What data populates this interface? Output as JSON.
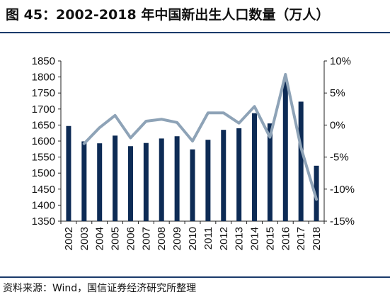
{
  "header": {
    "title": "图 45：2002-2018 年中国新出生人口数量（万人）"
  },
  "footer": {
    "source": "资料来源：Wind，国信证券经济研究所整理"
  },
  "colors": {
    "bar": "#0d2b55",
    "line": "#8ea3b7",
    "axis": "#222222",
    "rule": "#1a3a6b"
  },
  "chart_data": {
    "type": "bar",
    "categories": [
      "2002",
      "2003",
      "2004",
      "2005",
      "2006",
      "2007",
      "2008",
      "2009",
      "2010",
      "2011",
      "2012",
      "2013",
      "2014",
      "2015",
      "2016",
      "2017",
      "2018"
    ],
    "series": [
      {
        "type": "bar",
        "axis": "left",
        "values": [
          1647,
          1599,
          1593,
          1617,
          1584,
          1594,
          1608,
          1615,
          1574,
          1604,
          1635,
          1640,
          1687,
          1655,
          1786,
          1723,
          1523
        ]
      },
      {
        "type": "line",
        "axis": "right",
        "values": [
          null,
          -2.9,
          -0.4,
          1.5,
          -2.0,
          0.6,
          0.9,
          0.4,
          -2.5,
          1.9,
          1.9,
          0.3,
          2.9,
          -1.9,
          7.9,
          -3.5,
          -11.6
        ]
      }
    ],
    "y_left": {
      "min": 1350,
      "max": 1850,
      "ticks": [
        "1350",
        "1400",
        "1450",
        "1500",
        "1550",
        "1600",
        "1650",
        "1700",
        "1750",
        "1800",
        "1850"
      ]
    },
    "y_right": {
      "min": -15,
      "max": 10,
      "ticks": [
        "-15%",
        "-10%",
        "-5%",
        "0%",
        "5%",
        "10%"
      ]
    },
    "grid": false,
    "legend": "none"
  }
}
